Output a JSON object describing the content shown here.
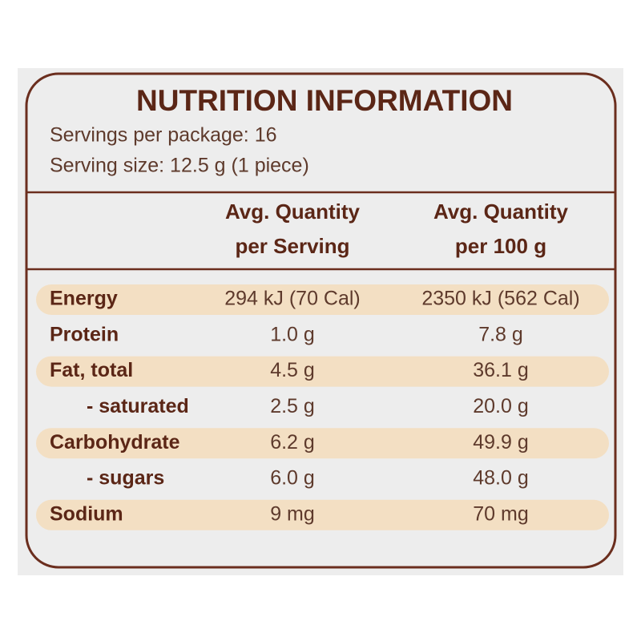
{
  "header": {
    "title": "NUTRITION INFORMATION",
    "servings_per_package": "Servings per package: 16",
    "serving_size": "Serving size: 12.5 g (1 piece)"
  },
  "table": {
    "columns": [
      [
        "Avg. Quantity",
        "per Serving"
      ],
      [
        "Avg. Quantity",
        "per 100 g"
      ]
    ],
    "rows": [
      [
        "Energy",
        "294 kJ (70 Cal)",
        "2350 kJ (562 Cal)"
      ],
      [
        "Protein",
        "1.0 g",
        "7.8 g"
      ],
      [
        "Fat, total",
        "4.5 g",
        "36.1 g"
      ],
      [
        "- saturated",
        "2.5 g",
        "20.0 g"
      ],
      [
        "Carbohydrate",
        "6.2 g",
        "49.9 g"
      ],
      [
        "- sugars",
        "6.0 g",
        "48.0 g"
      ],
      [
        "Sodium",
        "9 mg",
        "70 mg"
      ]
    ]
  }
}
